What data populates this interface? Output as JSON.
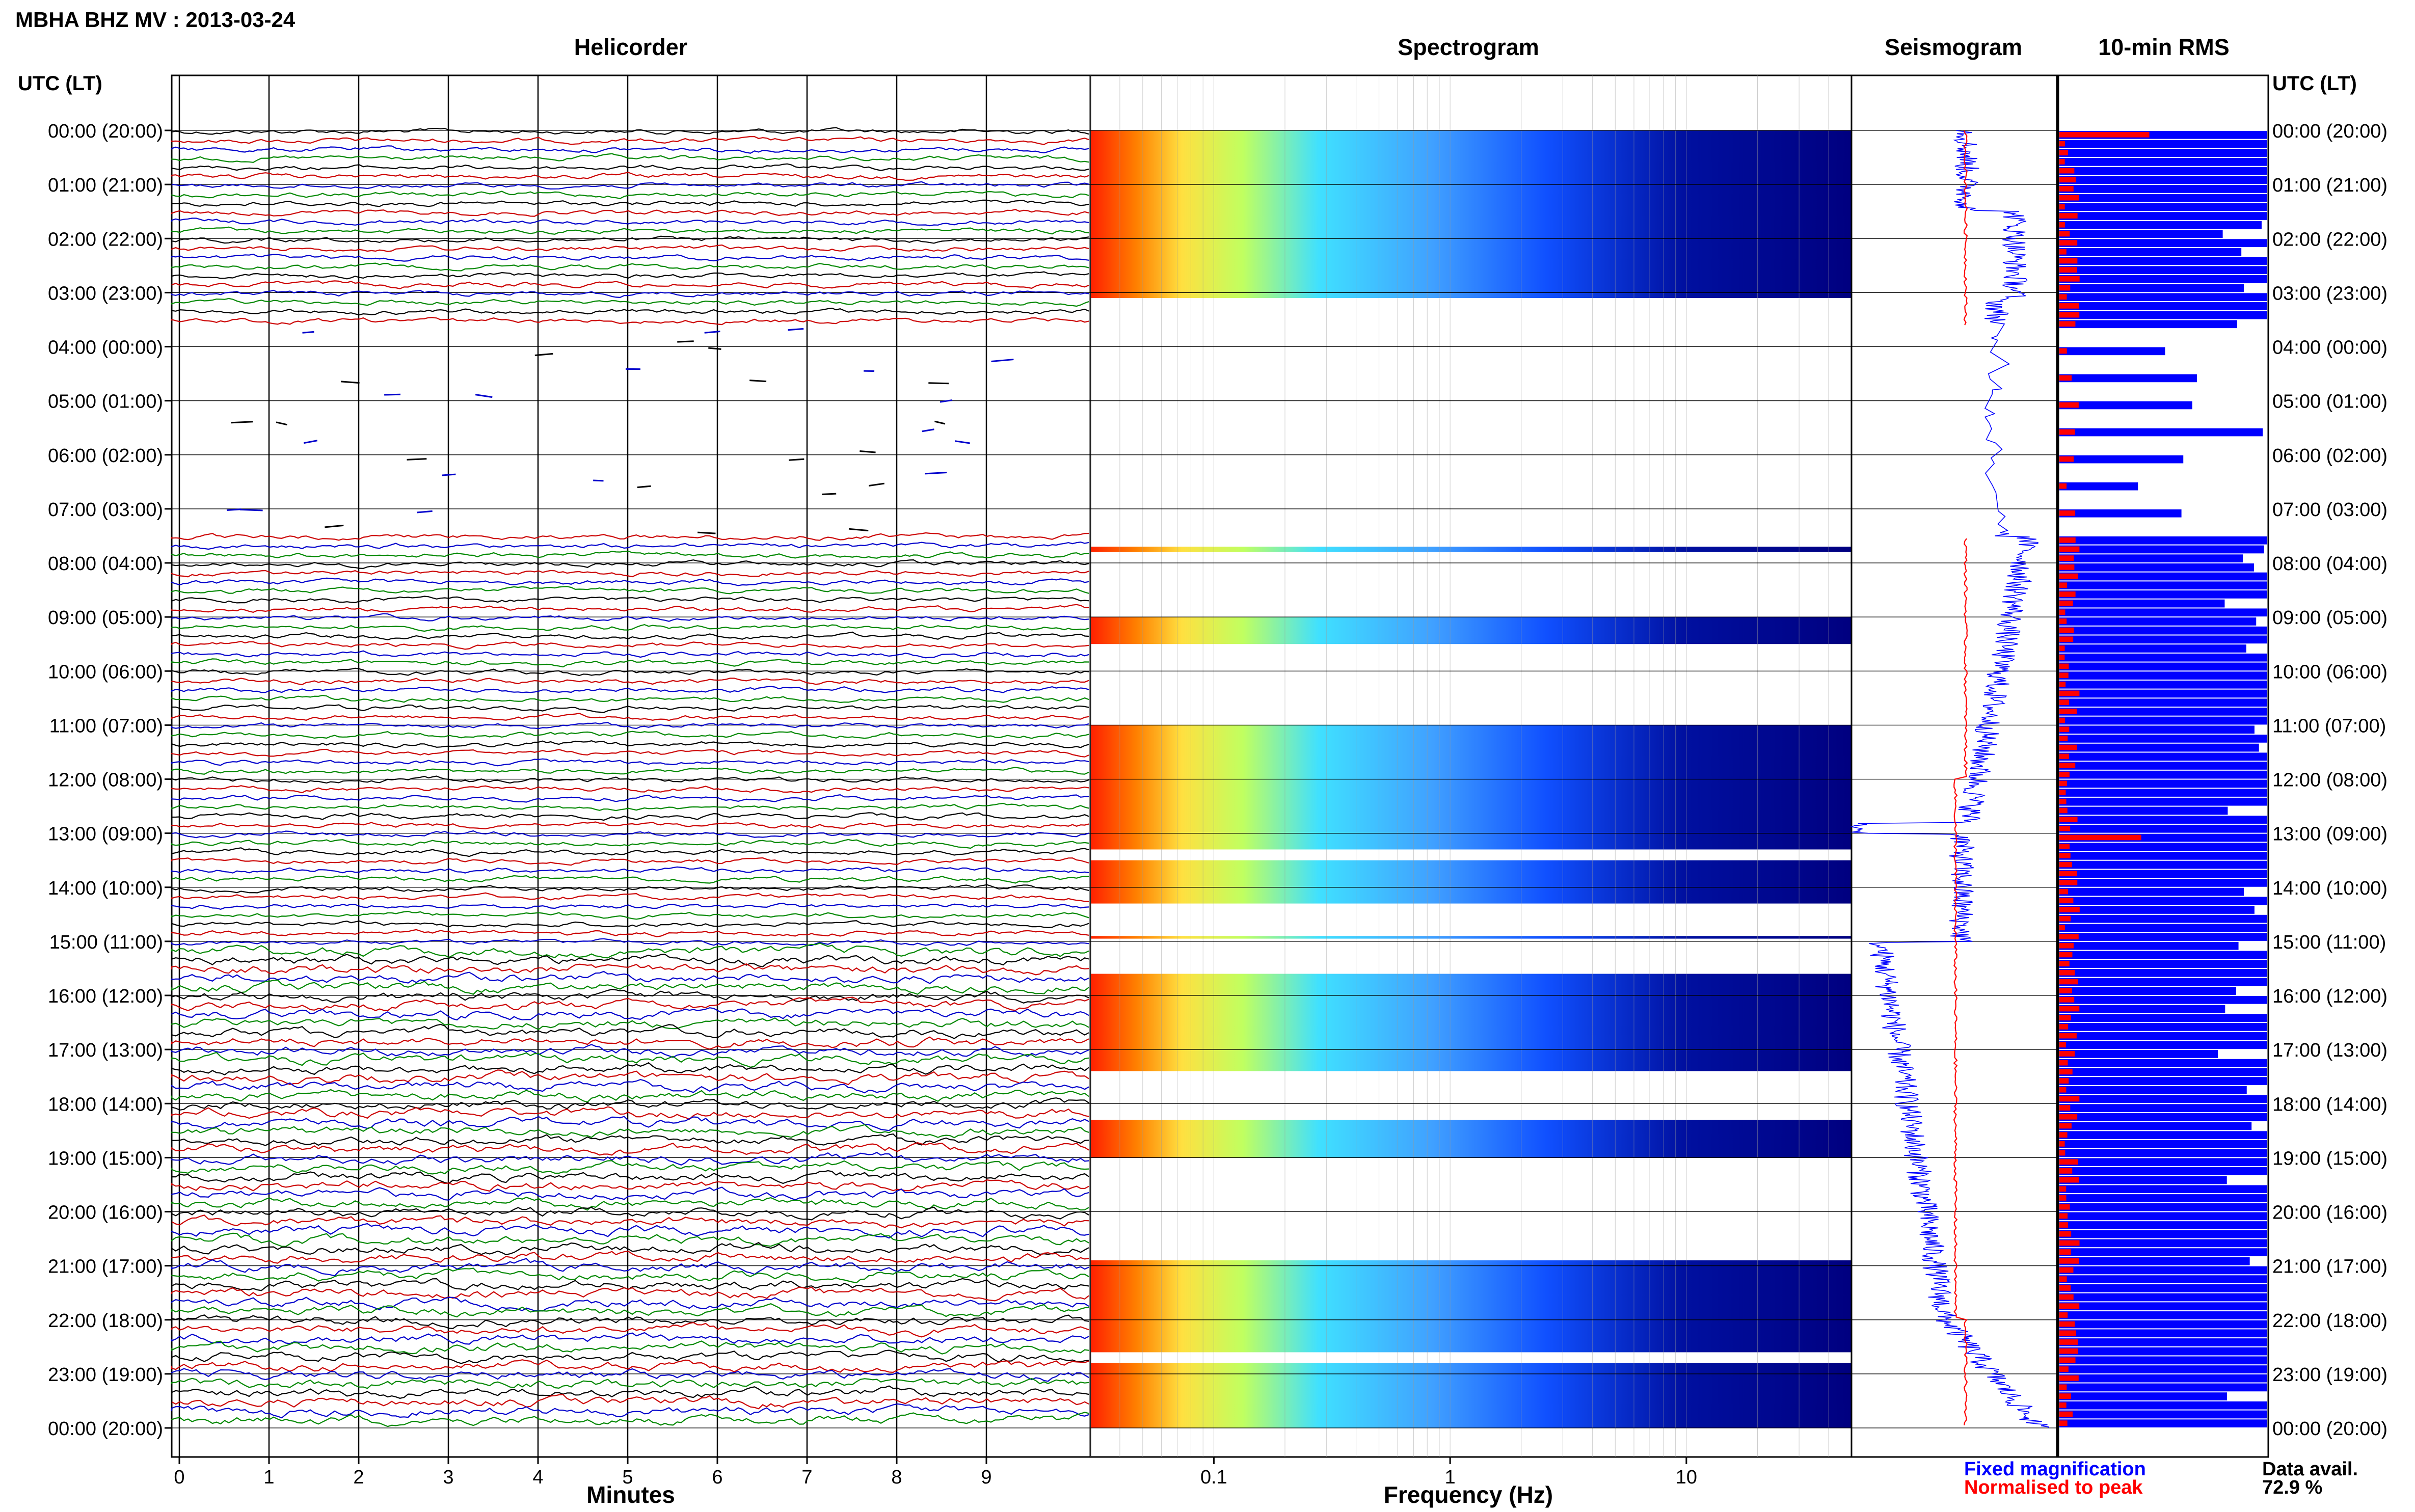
{
  "header": {
    "title": "MBHA BHZ MV : 2013-03-24",
    "panel_titles": {
      "helicorder": "Helicorder",
      "spectrogram": "Spectrogram",
      "seismogram": "Seismogram",
      "rms": "10-min RMS"
    },
    "axis_header_left": "UTC (LT)",
    "axis_header_right": "UTC (LT)"
  },
  "time_labels": [
    "00:00 (20:00)",
    "01:00 (21:00)",
    "02:00 (22:00)",
    "03:00 (23:00)",
    "04:00 (00:00)",
    "05:00 (01:00)",
    "06:00 (02:00)",
    "07:00 (03:00)",
    "08:00 (04:00)",
    "09:00 (05:00)",
    "10:00 (06:00)",
    "11:00 (07:00)",
    "12:00 (08:00)",
    "13:00 (09:00)",
    "14:00 (10:00)",
    "15:00 (11:00)",
    "16:00 (12:00)",
    "17:00 (13:00)",
    "18:00 (14:00)",
    "19:00 (15:00)",
    "20:00 (16:00)",
    "21:00 (17:00)",
    "22:00 (18:00)",
    "23:00 (19:00)",
    "00:00 (20:00)"
  ],
  "footer": {
    "legend_fixed": "Fixed magnification",
    "legend_normalised": "Normalised to peak",
    "data_avail_label": "Data avail.",
    "data_avail_value": "72.9 %"
  },
  "colors": {
    "fixed": "#0000ff",
    "normalised": "#ff0000",
    "rms_fill": "#0000ff",
    "rms_peak": "#ff0000",
    "trace_colors": [
      "#000000",
      "#cc0000",
      "#0000cc",
      "#008800"
    ]
  },
  "chart_data": [
    {
      "type": "line",
      "title": "Helicorder",
      "xlabel": "Minutes",
      "x_ticks": [
        "0",
        "1",
        "2",
        "3",
        "4",
        "5",
        "6",
        "7",
        "8",
        "9"
      ],
      "xlim": [
        0,
        10
      ],
      "rows_per_hour": 6,
      "data_gaps_hours": [
        [
          3.6,
          7.5
        ],
        [
          14.9,
          15.0
        ]
      ]
    },
    {
      "type": "heatmap",
      "title": "Spectrogram",
      "xlabel": "Frequency (Hz)",
      "x_ticks": [
        "0.1",
        "1",
        "10"
      ],
      "xlim": [
        0.03,
        50
      ],
      "x_scale": "log",
      "data_blocks_hours": [
        [
          0.0,
          3.1
        ],
        [
          7.7,
          7.8
        ],
        [
          9.0,
          9.5
        ],
        [
          11.0,
          13.3
        ],
        [
          13.5,
          14.3
        ],
        [
          14.9,
          14.95
        ],
        [
          15.6,
          17.4
        ],
        [
          18.3,
          19.0
        ],
        [
          20.9,
          22.6
        ],
        [
          22.8,
          24.0
        ]
      ]
    },
    {
      "type": "line",
      "title": "Seismogram",
      "series": [
        {
          "name": "Fixed magnification",
          "color": "#0000ff"
        },
        {
          "name": "Normalised to peak",
          "color": "#ff0000"
        }
      ]
    },
    {
      "type": "bar",
      "title": "10-min RMS",
      "rows_per_hour": 6,
      "data_availability_percent": 72.9
    }
  ]
}
